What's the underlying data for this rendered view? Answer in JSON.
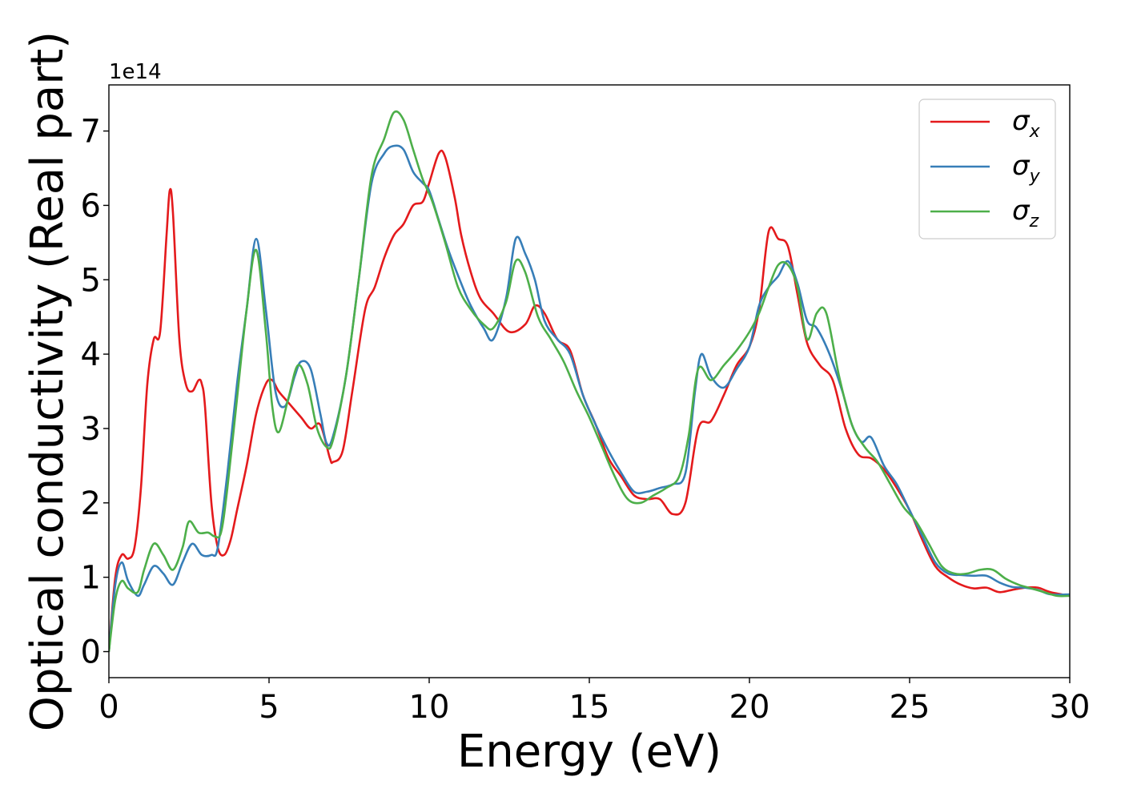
{
  "chart_data": {
    "type": "line",
    "title": "",
    "xlabel": "Energy (eV)",
    "ylabel": "Optical conductivity (Real part)",
    "y_offset_label": "1e14",
    "y_scale": 100000000000000.0,
    "xlim": [
      0,
      30
    ],
    "ylim": [
      -0.35,
      7.62
    ],
    "xticks": [
      0,
      5,
      10,
      15,
      20,
      25,
      30
    ],
    "yticks": [
      0,
      1,
      2,
      3,
      4,
      5,
      6,
      7
    ],
    "grid": false,
    "legend_position": "top-right",
    "series": [
      {
        "name": "σx",
        "symbol": "σ",
        "subscript": "x",
        "color": "#e41a1c",
        "x": [
          0,
          0.2,
          0.4,
          0.6,
          0.8,
          1.0,
          1.2,
          1.4,
          1.6,
          1.8,
          1.9,
          2.0,
          2.2,
          2.4,
          2.6,
          2.8,
          2.9,
          3.0,
          3.2,
          3.4,
          3.6,
          3.8,
          4.0,
          4.3,
          4.6,
          4.9,
          5.1,
          5.3,
          5.6,
          6.0,
          6.3,
          6.6,
          6.9,
          7.0,
          7.3,
          7.6,
          8.0,
          8.3,
          8.6,
          8.9,
          9.2,
          9.5,
          9.8,
          10.0,
          10.3,
          10.5,
          10.8,
          11.0,
          11.3,
          11.6,
          12.0,
          12.5,
          13.0,
          13.3,
          13.6,
          14.0,
          14.4,
          14.8,
          15.2,
          15.6,
          16.0,
          16.4,
          16.8,
          17.2,
          17.6,
          18.0,
          18.4,
          18.8,
          19.2,
          19.6,
          20.0,
          20.3,
          20.6,
          20.9,
          21.2,
          21.5,
          21.8,
          22.2,
          22.6,
          23.0,
          23.4,
          23.8,
          24.2,
          24.6,
          25.0,
          25.4,
          25.8,
          26.2,
          26.6,
          27.0,
          27.4,
          27.8,
          28.2,
          28.6,
          29.0,
          29.4,
          30.0
        ],
        "y": [
          0,
          1.0,
          1.3,
          1.25,
          1.4,
          2.2,
          3.6,
          4.2,
          4.3,
          5.6,
          6.2,
          5.9,
          4.2,
          3.6,
          3.5,
          3.65,
          3.6,
          3.3,
          2.0,
          1.4,
          1.3,
          1.5,
          1.9,
          2.5,
          3.2,
          3.6,
          3.65,
          3.5,
          3.35,
          3.15,
          3.0,
          3.05,
          2.6,
          2.55,
          2.7,
          3.5,
          4.6,
          4.9,
          5.3,
          5.6,
          5.75,
          6.0,
          6.05,
          6.3,
          6.7,
          6.65,
          6.1,
          5.6,
          5.1,
          4.75,
          4.55,
          4.3,
          4.4,
          4.65,
          4.55,
          4.2,
          4.05,
          3.45,
          3.05,
          2.6,
          2.35,
          2.1,
          2.05,
          2.05,
          1.85,
          2.0,
          3.0,
          3.1,
          3.45,
          3.85,
          4.1,
          4.6,
          5.65,
          5.55,
          5.45,
          4.8,
          4.15,
          3.85,
          3.65,
          3.0,
          2.65,
          2.6,
          2.45,
          2.2,
          1.9,
          1.5,
          1.15,
          1.0,
          0.9,
          0.85,
          0.86,
          0.8,
          0.83,
          0.86,
          0.86,
          0.8,
          0.75
        ]
      },
      {
        "name": "σy",
        "symbol": "σ",
        "subscript": "y",
        "color": "#377eb8",
        "x": [
          0,
          0.2,
          0.4,
          0.6,
          0.9,
          1.1,
          1.4,
          1.7,
          2.0,
          2.3,
          2.6,
          2.9,
          3.2,
          3.4,
          3.7,
          4.0,
          4.3,
          4.6,
          4.9,
          5.2,
          5.5,
          5.8,
          6.0,
          6.3,
          6.6,
          6.8,
          7.0,
          7.4,
          7.8,
          8.2,
          8.6,
          8.9,
          9.2,
          9.5,
          9.8,
          10.0,
          10.3,
          10.6,
          11.0,
          11.3,
          11.7,
          12.0,
          12.4,
          12.7,
          13.0,
          13.3,
          13.6,
          14.0,
          14.4,
          14.8,
          15.2,
          15.6,
          16.0,
          16.4,
          16.8,
          17.2,
          17.6,
          18.0,
          18.3,
          18.5,
          18.8,
          19.2,
          19.6,
          20.0,
          20.3,
          20.6,
          20.9,
          21.2,
          21.5,
          21.8,
          22.1,
          22.5,
          22.9,
          23.2,
          23.5,
          23.8,
          24.2,
          24.6,
          25.0,
          25.4,
          25.8,
          26.2,
          26.6,
          27.0,
          27.4,
          27.8,
          28.2,
          28.6,
          29.0,
          29.4,
          30.0
        ],
        "y": [
          0,
          0.9,
          1.2,
          0.95,
          0.75,
          0.9,
          1.15,
          1.05,
          0.9,
          1.2,
          1.45,
          1.3,
          1.3,
          1.4,
          2.4,
          3.6,
          4.6,
          5.55,
          4.6,
          3.5,
          3.3,
          3.7,
          3.9,
          3.8,
          3.2,
          2.8,
          2.9,
          3.7,
          5.0,
          6.3,
          6.7,
          6.8,
          6.75,
          6.45,
          6.3,
          6.2,
          5.8,
          5.4,
          4.95,
          4.65,
          4.35,
          4.2,
          4.75,
          5.55,
          5.35,
          5.0,
          4.45,
          4.2,
          4.0,
          3.45,
          3.05,
          2.7,
          2.4,
          2.15,
          2.15,
          2.2,
          2.25,
          2.4,
          3.5,
          4.0,
          3.7,
          3.55,
          3.8,
          4.1,
          4.65,
          4.9,
          5.05,
          5.25,
          4.95,
          4.45,
          4.35,
          4.0,
          3.5,
          3.05,
          2.82,
          2.88,
          2.5,
          2.25,
          1.9,
          1.55,
          1.2,
          1.05,
          1.03,
          1.02,
          1.02,
          0.93,
          0.87,
          0.86,
          0.83,
          0.77,
          0.77
        ]
      },
      {
        "name": "σz",
        "symbol": "σ",
        "subscript": "z",
        "color": "#4daf4a",
        "x": [
          0,
          0.2,
          0.4,
          0.6,
          0.9,
          1.1,
          1.4,
          1.7,
          2.0,
          2.3,
          2.5,
          2.8,
          3.1,
          3.3,
          3.5,
          3.7,
          4.0,
          4.3,
          4.6,
          4.9,
          5.1,
          5.3,
          5.6,
          5.9,
          6.2,
          6.5,
          6.8,
          7.0,
          7.4,
          7.8,
          8.2,
          8.6,
          8.9,
          9.2,
          9.5,
          9.8,
          10.1,
          10.5,
          10.9,
          11.3,
          11.7,
          12.0,
          12.4,
          12.7,
          13.0,
          13.4,
          13.8,
          14.2,
          14.6,
          15.0,
          15.4,
          15.8,
          16.2,
          16.6,
          17.0,
          17.4,
          17.8,
          18.1,
          18.4,
          18.8,
          19.2,
          19.6,
          20.0,
          20.3,
          20.6,
          20.9,
          21.2,
          21.5,
          21.8,
          22.1,
          22.4,
          22.8,
          23.2,
          23.6,
          24.0,
          24.4,
          24.8,
          25.2,
          25.6,
          26.0,
          26.4,
          26.8,
          27.2,
          27.6,
          28.0,
          28.4,
          28.8,
          29.2,
          29.6,
          30.0
        ],
        "y": [
          0,
          0.7,
          0.95,
          0.85,
          0.8,
          1.1,
          1.45,
          1.3,
          1.1,
          1.4,
          1.75,
          1.6,
          1.6,
          1.55,
          1.6,
          2.2,
          3.4,
          4.6,
          5.4,
          4.3,
          3.3,
          2.95,
          3.4,
          3.85,
          3.6,
          3.0,
          2.75,
          2.85,
          3.7,
          5.0,
          6.4,
          6.9,
          7.25,
          7.15,
          6.75,
          6.35,
          6.05,
          5.5,
          4.9,
          4.6,
          4.4,
          4.35,
          4.7,
          5.25,
          5.1,
          4.5,
          4.2,
          3.9,
          3.5,
          3.15,
          2.75,
          2.35,
          2.05,
          2.0,
          2.1,
          2.2,
          2.35,
          2.9,
          3.8,
          3.65,
          3.85,
          4.05,
          4.3,
          4.55,
          4.9,
          5.2,
          5.2,
          4.9,
          4.2,
          4.55,
          4.55,
          3.7,
          3.05,
          2.75,
          2.55,
          2.25,
          1.95,
          1.75,
          1.45,
          1.15,
          1.05,
          1.05,
          1.1,
          1.1,
          0.98,
          0.9,
          0.85,
          0.8,
          0.75,
          0.75
        ]
      }
    ]
  }
}
